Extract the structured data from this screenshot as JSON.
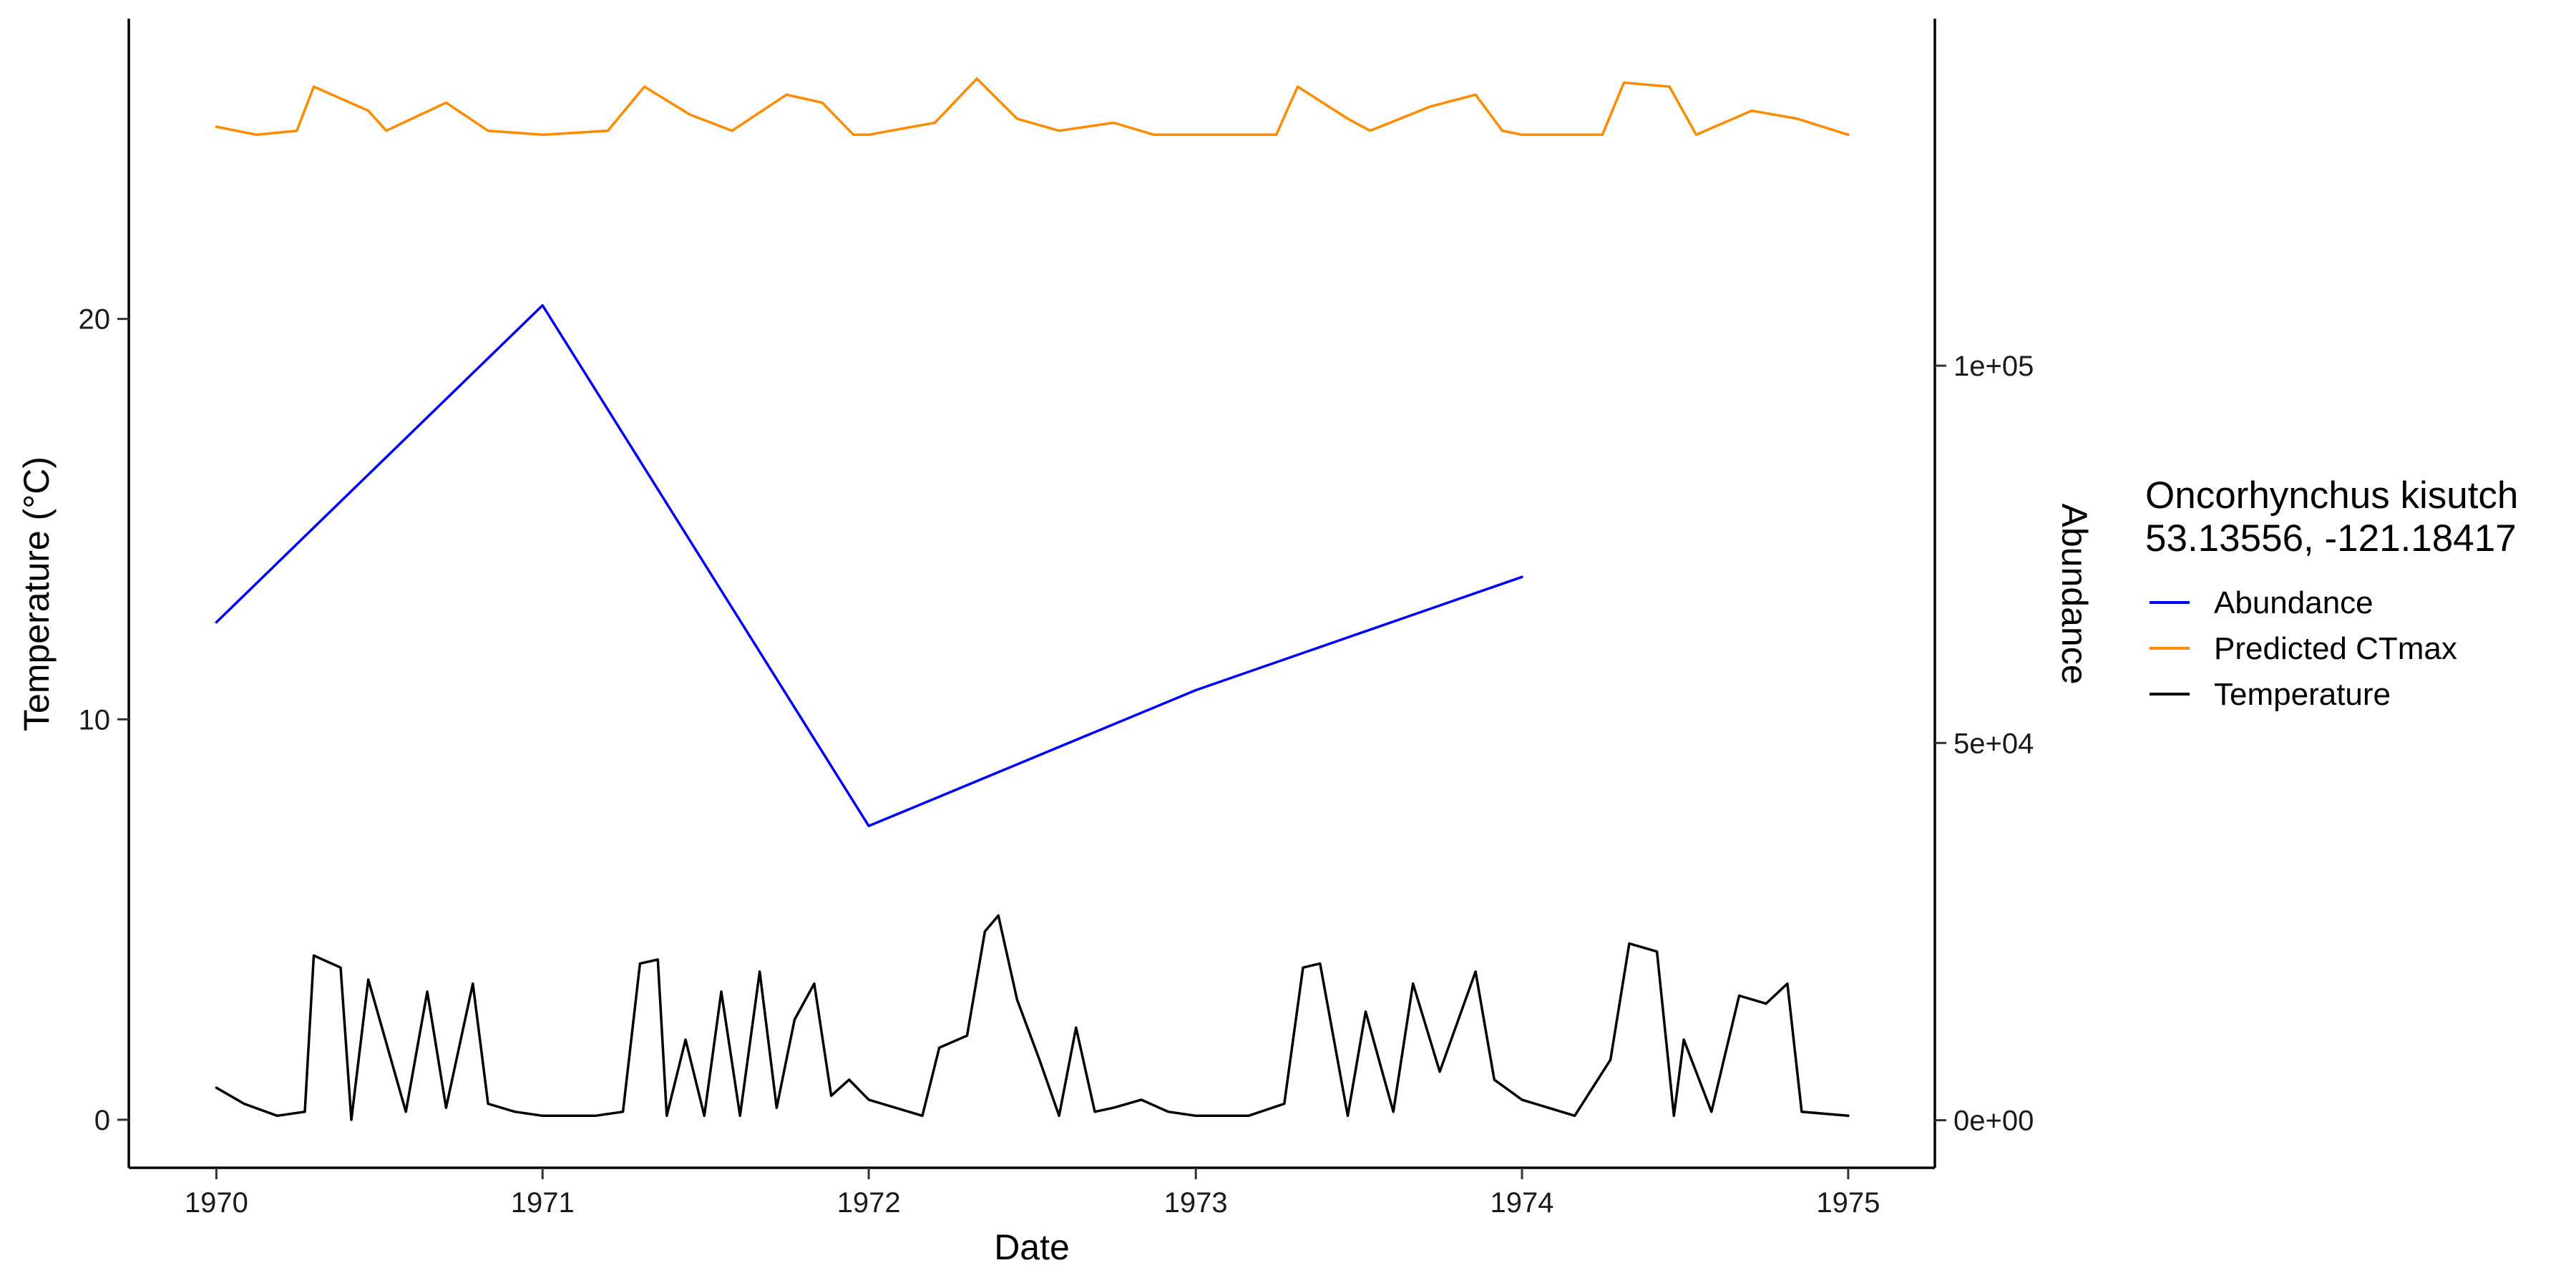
{
  "chart_data": {
    "type": "line",
    "xlabel": "Date",
    "ylabel": "Temperature (°C)",
    "y2label": "Abundance",
    "x_ticks": [
      "1970",
      "1971",
      "1972",
      "1973",
      "1974",
      "1975"
    ],
    "y_ticks": [
      "0",
      "10",
      "20"
    ],
    "y2_ticks": [
      "0e+00",
      "5e+04",
      "1e+05"
    ],
    "xlim": [
      "1969-09-25",
      "1975-04-08"
    ],
    "ylim": [
      -1.2,
      27.5
    ],
    "y2lim": [
      -6300,
      146000
    ],
    "grid": false,
    "legend_position": "right",
    "legend": {
      "title_line1": "Oncorhynchus kisutch",
      "title_line2": "53.13556, -121.18417",
      "entries": [
        "Abundance",
        "Predicted CTmax",
        "Temperature"
      ]
    },
    "colors": {
      "Abundance": "#0000ff",
      "Predicted CTmax": "#ff8c00",
      "Temperature": "#000000",
      "y2label": "#0000ff"
    },
    "series": [
      {
        "name": "Abundance",
        "axis": "secondary",
        "x": [
          "1970-01-01",
          "1971-01-01",
          "1972-01-01",
          "1973-01-01",
          "1974-01-01"
        ],
        "values": [
          66000,
          108000,
          39000,
          57000,
          72000
        ]
      },
      {
        "name": "Predicted CTmax",
        "axis": "primary",
        "x": [
          "1970-01-01",
          "1970-02-15",
          "1970-04-01",
          "1970-04-20",
          "1970-06-20",
          "1970-07-10",
          "1970-09-15",
          "1970-11-01",
          "1971-01-01",
          "1971-03-15",
          "1971-04-25",
          "1971-06-15",
          "1971-08-01",
          "1971-10-01",
          "1971-11-10",
          "1971-12-15",
          "1972-01-01",
          "1972-03-15",
          "1972-05-01",
          "1972-06-15",
          "1972-08-01",
          "1972-10-01",
          "1972-11-15",
          "1973-01-01",
          "1973-04-01",
          "1973-04-25",
          "1973-06-20",
          "1973-07-15",
          "1973-09-20",
          "1973-11-10",
          "1973-12-10",
          "1974-01-01",
          "1974-04-01",
          "1974-04-25",
          "1974-06-15",
          "1974-07-15",
          "1974-09-15",
          "1974-11-05",
          "1975-01-01"
        ],
        "values": [
          24.8,
          24.6,
          24.7,
          25.8,
          25.2,
          24.7,
          25.4,
          24.7,
          24.6,
          24.7,
          25.8,
          25.1,
          24.7,
          25.6,
          25.4,
          24.6,
          24.6,
          24.9,
          26.0,
          25.0,
          24.7,
          24.9,
          24.6,
          24.6,
          24.6,
          25.8,
          25.0,
          24.7,
          25.3,
          25.6,
          24.7,
          24.6,
          24.6,
          25.9,
          25.8,
          24.6,
          25.2,
          25.0,
          24.6
        ]
      },
      {
        "name": "Temperature",
        "axis": "primary",
        "x": [
          "1970-01-01",
          "1970-02-01",
          "1970-03-10",
          "1970-04-10",
          "1970-04-20",
          "1970-05-20",
          "1970-06-01",
          "1970-06-20",
          "1970-08-01",
          "1970-08-25",
          "1970-09-15",
          "1970-10-15",
          "1970-11-01",
          "1970-12-01",
          "1971-01-01",
          "1971-03-01",
          "1971-04-01",
          "1971-04-20",
          "1971-05-10",
          "1971-05-20",
          "1971-06-10",
          "1971-07-01",
          "1971-07-20",
          "1971-08-10",
          "1971-09-01",
          "1971-09-20",
          "1971-10-10",
          "1971-11-01",
          "1971-11-20",
          "1971-12-10",
          "1972-01-01",
          "1972-03-01",
          "1972-03-20",
          "1972-04-20",
          "1972-05-10",
          "1972-05-25",
          "1972-06-15",
          "1972-07-10",
          "1972-08-01",
          "1972-08-20",
          "1972-09-10",
          "1972-10-01",
          "1972-11-01",
          "1972-12-01",
          "1973-01-01",
          "1973-03-01",
          "1973-04-10",
          "1973-05-01",
          "1973-05-20",
          "1973-06-20",
          "1973-07-10",
          "1973-08-10",
          "1973-09-01",
          "1973-10-01",
          "1973-11-10",
          "1973-12-01",
          "1974-01-01",
          "1974-03-01",
          "1974-04-10",
          "1974-05-01",
          "1974-06-01",
          "1974-06-20",
          "1974-07-01",
          "1974-08-01",
          "1974-09-01",
          "1974-10-01",
          "1974-10-25",
          "1974-11-10",
          "1975-01-01"
        ],
        "values": [
          0.8,
          0.4,
          0.1,
          0.2,
          4.1,
          3.8,
          0.0,
          3.5,
          0.2,
          3.2,
          0.3,
          3.4,
          0.4,
          0.2,
          0.1,
          0.1,
          0.2,
          3.9,
          4.0,
          0.1,
          2.0,
          0.1,
          3.2,
          0.1,
          3.7,
          0.3,
          2.5,
          3.4,
          0.6,
          1.0,
          0.5,
          0.1,
          1.8,
          2.1,
          4.7,
          5.1,
          3.0,
          1.5,
          0.1,
          2.3,
          0.2,
          0.3,
          0.5,
          0.2,
          0.1,
          0.1,
          0.4,
          3.8,
          3.9,
          0.1,
          2.7,
          0.2,
          3.4,
          1.2,
          3.7,
          1.0,
          0.5,
          0.1,
          1.5,
          4.4,
          4.2,
          0.1,
          2.0,
          0.2,
          3.1,
          2.9,
          3.4,
          0.2,
          0.1
        ]
      }
    ]
  }
}
